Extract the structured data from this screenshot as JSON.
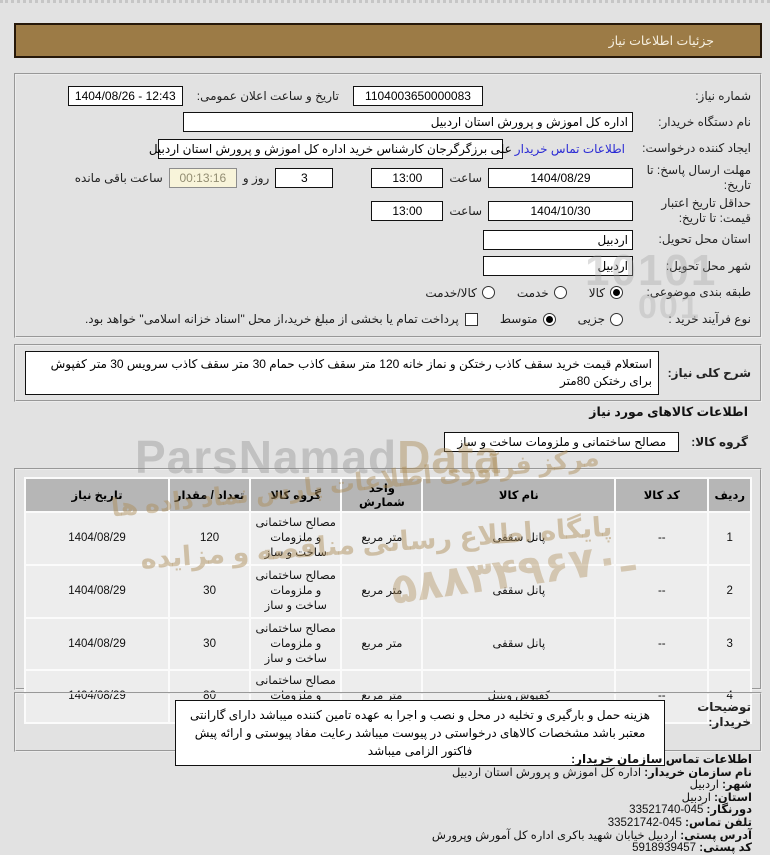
{
  "title_bar": {
    "title": "جزئیات اطلاعات نیاز"
  },
  "form": {
    "need_number": {
      "label": "شماره نیاز:",
      "value": "1104003650000083"
    },
    "announce_datetime": {
      "label": "تاریخ و ساعت اعلان عمومی:",
      "value": "1404/08/26 - 12:43"
    },
    "buyer_org": {
      "label": "نام دستگاه خریدار:",
      "value": "اداره کل اموزش و پرورش استان اردبیل"
    },
    "request_creator": {
      "label": "ایجاد کننده درخواست:",
      "value": "علی برزگرگرجان کارشناس خرید اداره کل اموزش و پرورش استان اردبیل",
      "contact_link": "اطلاعات تماس خریدار"
    },
    "reply_deadline": {
      "label": "مهلت ارسال پاسخ: تا تاریخ:",
      "date": "1404/08/29",
      "hour_label": "ساعت",
      "time": "13:00",
      "days_value": "3",
      "days_label": "روز و",
      "countdown": "00:13:16",
      "remaining_label": "ساعت باقی مانده"
    },
    "price_validity": {
      "label": "حداقل تاریخ اعتبار قیمت: تا تاریخ:",
      "date": "1404/10/30",
      "hour_label": "ساعت",
      "time": "13:00"
    },
    "delivery_province": {
      "label": "استان محل تحویل:",
      "value": "اردبیل"
    },
    "delivery_city": {
      "label": "شهر محل تحویل:",
      "value": "اردبیل"
    },
    "subject_class": {
      "label": "طبقه بندی موضوعی:",
      "options": [
        {
          "label": "کالا",
          "selected": true
        },
        {
          "label": "خدمت",
          "selected": false
        },
        {
          "label": "کالا/خدمت",
          "selected": false
        }
      ]
    },
    "purchase_type": {
      "label": "نوع فرآیند خرید :",
      "options": [
        {
          "label": "جزیی",
          "selected": false
        },
        {
          "label": "متوسط",
          "selected": true
        }
      ],
      "checkbox_label": "پرداخت تمام یا بخشی از مبلغ خرید،از محل \"اسناد خزانه اسلامی\" خواهد بود.",
      "checkbox_checked": false
    }
  },
  "summary": {
    "label": "شرح کلی نیاز:",
    "value": "استعلام قیمت خرید سقف کاذب رختکن و نماز خانه 120 متر سقف کاذب حمام 30 متر سقف کاذب سرویس 30 متر کفپوش برای رختکن 80متر"
  },
  "items_section": {
    "header": "اطلاعات کالاهای مورد نیاز",
    "group_label": "گروه کالا:",
    "group_value": "مصالح ساختمانی و ملزومات ساخت و ساز",
    "table": {
      "columns": [
        "ردیف",
        "کد کالا",
        "نام کالا",
        "واحد شمارش",
        "گروه کالا",
        "تعداد / مقدار",
        "تاریخ نیاز"
      ],
      "rows": [
        [
          "1",
          "--",
          "پانل سقفی",
          "متر مربع",
          "مصالح ساختمانی و ملزومات ساخت و ساز",
          "120",
          "1404/08/29"
        ],
        [
          "2",
          "--",
          "پانل سقفی",
          "متر مربع",
          "مصالح ساختمانی و ملزومات ساخت و ساز",
          "30",
          "1404/08/29"
        ],
        [
          "3",
          "--",
          "پانل سقفی",
          "متر مربع",
          "مصالح ساختمانی و ملزومات ساخت و ساز",
          "30",
          "1404/08/29"
        ],
        [
          "4",
          "--",
          "کفپوش وینیل",
          "متر مربع",
          "مصالح ساختمانی و ملزومات ساخت و ساز",
          "80",
          "1404/08/29"
        ]
      ]
    }
  },
  "buyer_notes": {
    "label": "توضیحات خریدار:",
    "value": "هزینه حمل و بارگیری و تخلیه در محل و نصب و اجرا به عهده تامین کننده میباشد دارای گارانتی معتبر باشد مشخصات کالاهای درخواستی در پیوست میباشد رعایت مفاد پیوستی و ارائه پیش فاکتور الزامی میباشد"
  },
  "contact": {
    "header": "اطلاعات تماس سازمان خریدار:",
    "rows": [
      {
        "label": "نام سازمان خریدار:",
        "value": "اداره کل اموزش و پرورش استان اردبیل",
        "numeric": false
      },
      {
        "label": "شهر:",
        "value": "اردبیل",
        "numeric": false
      },
      {
        "label": "استان:",
        "value": "اردبیل",
        "numeric": false
      },
      {
        "label": "دورنگار:",
        "value": "33521740-045",
        "numeric": true
      },
      {
        "label": "تلفن تماس:",
        "value": "33521742-045",
        "numeric": true
      },
      {
        "label": "آدرس پستی:",
        "value": "اردبیل خیابان شهید باکری اداره کل آمورش وپرورش",
        "numeric": false
      },
      {
        "label": "کد پستی:",
        "value": "5918939457",
        "numeric": true
      }
    ]
  },
  "watermarks": {
    "digits1": "10101",
    "digits2": "001",
    "pars": "ParsNamad",
    "pars_tail": "Data",
    "line1": "مرکز فرآوری اطلاعات پارس نماد داده ها",
    "line2": "پایگاه اطلاع رسانی مناقصه و مزایده",
    "phone": "۵ـ۸۸۳۴۹۶۷۰"
  },
  "colors": {
    "title_bar_bg": "#9c7b46",
    "link": "#2a2ad4",
    "timer_bg": "#f8f4da",
    "table_header_bg": "#b6b6b6",
    "table_cell_bg": "#ededed",
    "watermark_tan": "#ac8c58"
  }
}
